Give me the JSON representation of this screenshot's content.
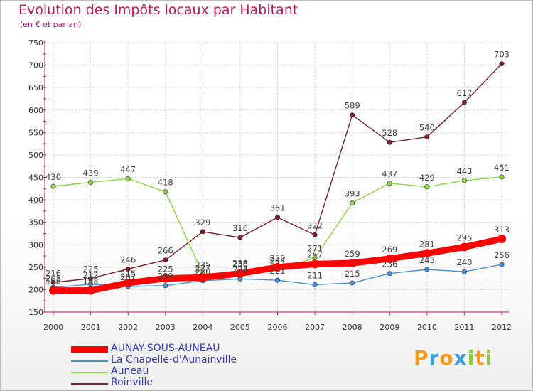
{
  "chart_data": {
    "type": "line",
    "title": "Evolution des Impôts locaux par Habitant",
    "subtitle": "(en € et par an)",
    "xlabel": "",
    "ylabel": "",
    "x": [
      2000,
      2001,
      2002,
      2003,
      2004,
      2005,
      2006,
      2007,
      2008,
      2009,
      2010,
      2011,
      2012
    ],
    "ylim": [
      150,
      750
    ],
    "yticks": [
      150,
      200,
      250,
      300,
      350,
      400,
      450,
      500,
      550,
      600,
      650,
      700,
      750
    ],
    "grid": true,
    "legend_position": "bottom-left",
    "series": [
      {
        "name": "AUNAY-SOUS-AUNEAU",
        "color": "#ff0000",
        "emphasis": "thick",
        "values": [
          198,
          198,
          215,
          225,
          227,
          236,
          250,
          257,
          259,
          269,
          281,
          295,
          313
        ],
        "labels": [
          "198",
          "198",
          "215",
          "225",
          "227",
          "236",
          "250",
          "257",
          "259",
          "269",
          "281",
          "295",
          "313"
        ]
      },
      {
        "name": "La Chapelle-d'Aunainville",
        "color": "#4a90d9",
        "emphasis": "thin",
        "values": [
          205,
          212,
          207,
          209,
          220,
          224,
          221,
          211,
          215,
          236,
          245,
          240,
          256
        ],
        "labels": [
          "205",
          "212",
          "207",
          "209",
          "220",
          "224",
          "221",
          "211",
          "215",
          "236",
          "245",
          "240",
          "256"
        ]
      },
      {
        "name": "Auneau",
        "color": "#8ed646",
        "emphasis": "thin",
        "values": [
          430,
          439,
          447,
          418,
          235,
          238,
          244,
          271,
          393,
          437,
          429,
          443,
          451
        ],
        "labels": [
          "430",
          "439",
          "447",
          "418",
          "235",
          "238",
          "244",
          "271",
          "393",
          "437",
          "429",
          "443",
          "451"
        ]
      },
      {
        "name": "Roinville",
        "color": "#7a1f2b",
        "emphasis": "thin",
        "values": [
          216,
          225,
          246,
          266,
          329,
          316,
          361,
          322,
          589,
          528,
          540,
          617,
          703
        ],
        "labels": [
          "216",
          "225",
          "246",
          "266",
          "329",
          "316",
          "361",
          "322",
          "589",
          "528",
          "540",
          "617",
          "703"
        ]
      }
    ]
  },
  "brand": {
    "letters": [
      "P",
      "r",
      "o",
      "x",
      "i",
      "t",
      "i"
    ],
    "colors": [
      "#f29b1d",
      "#3aa0d8",
      "#f29b1d",
      "#3aa0d8",
      "#8cc63f",
      "#f29b1d",
      "#8cc63f"
    ]
  }
}
